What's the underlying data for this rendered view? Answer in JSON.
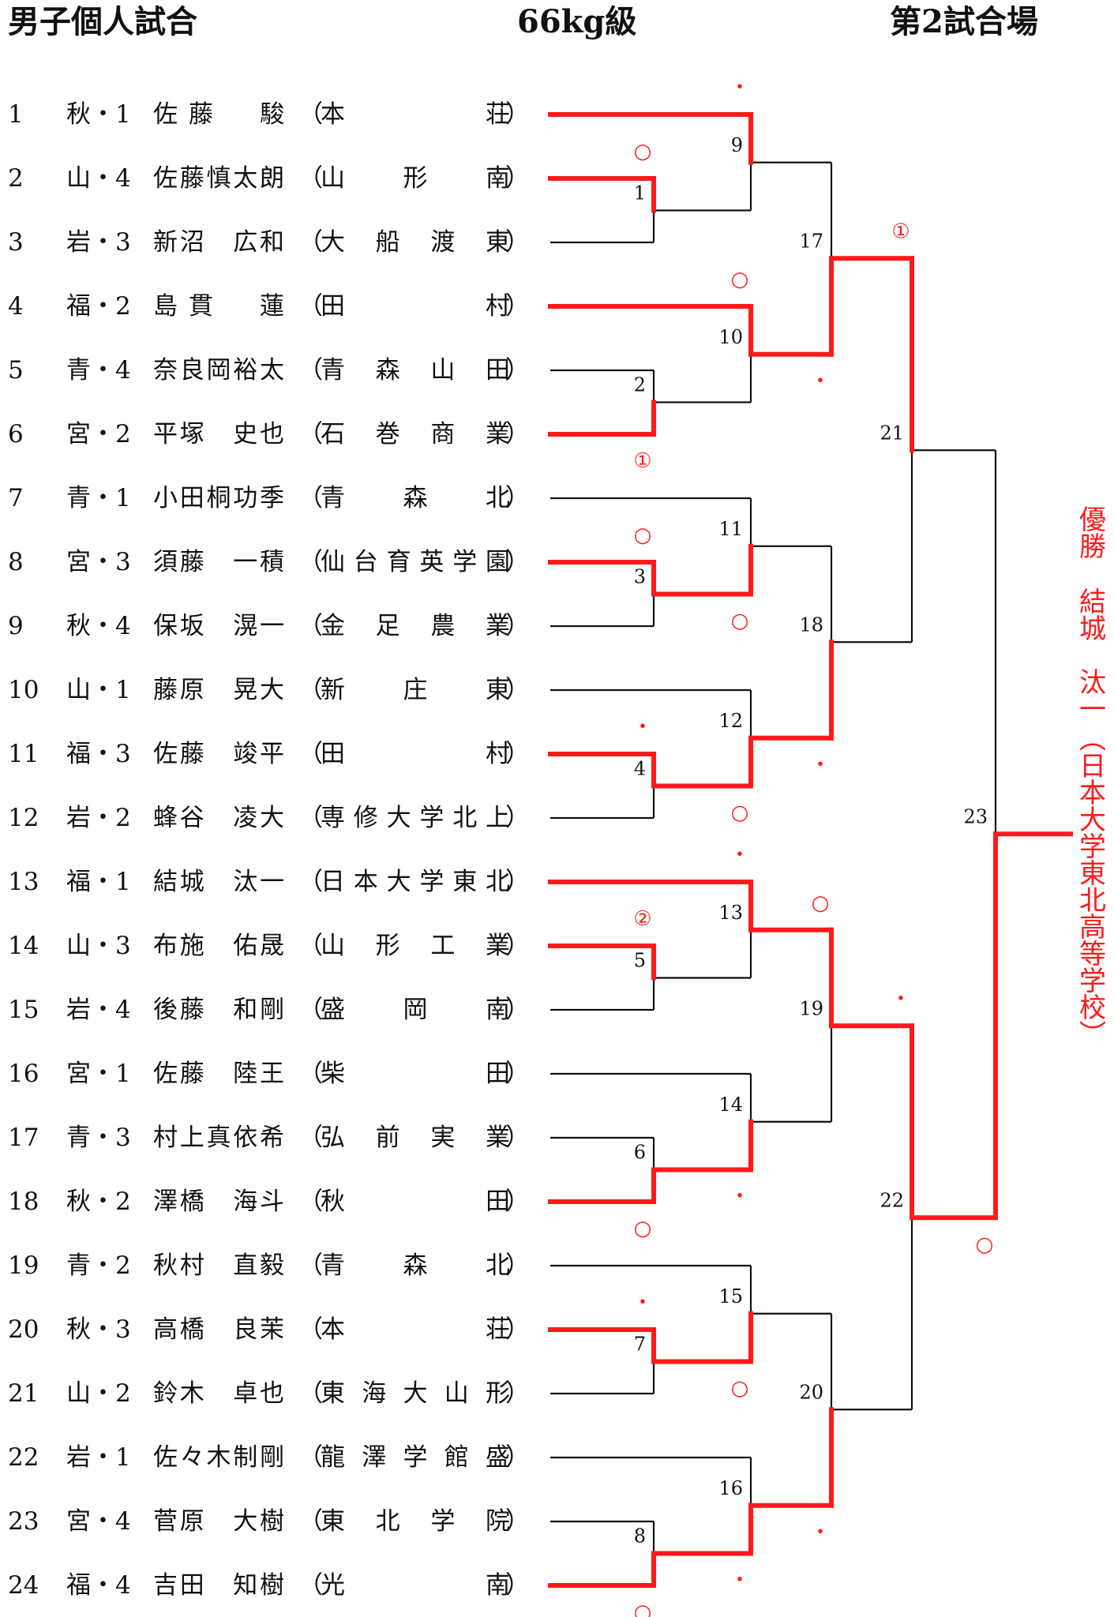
{
  "header": {
    "event": "男子個人試合",
    "weight_class": "66kg級",
    "court": "第2試合場"
  },
  "colors": {
    "winner_line": "#ff1a1a",
    "line": "#111111",
    "text": "#111111"
  },
  "entries": [
    {
      "seed": "1",
      "prefecture": "秋・1",
      "name": "佐藤　駿",
      "school": "本荘"
    },
    {
      "seed": "2",
      "prefecture": "山・4",
      "name": "佐藤慎太朗",
      "school": "山形南"
    },
    {
      "seed": "3",
      "prefecture": "岩・3",
      "name": "新沼　広和",
      "school": "大船渡東"
    },
    {
      "seed": "4",
      "prefecture": "福・2",
      "name": "島貫　蓮",
      "school": "田村"
    },
    {
      "seed": "5",
      "prefecture": "青・4",
      "name": "奈良岡裕太",
      "school": "青森山田"
    },
    {
      "seed": "6",
      "prefecture": "宮・2",
      "name": "平塚　史也",
      "school": "石巻商業"
    },
    {
      "seed": "7",
      "prefecture": "青・1",
      "name": "小田桐功季",
      "school": "青森北"
    },
    {
      "seed": "8",
      "prefecture": "宮・3",
      "name": "須藤　一積",
      "school": "仙台育英学園"
    },
    {
      "seed": "9",
      "prefecture": "秋・4",
      "name": "保坂　滉一",
      "school": "金足農業"
    },
    {
      "seed": "10",
      "prefecture": "山・1",
      "name": "藤原　晃大",
      "school": "新庄東"
    },
    {
      "seed": "11",
      "prefecture": "福・3",
      "name": "佐藤　竣平",
      "school": "田村"
    },
    {
      "seed": "12",
      "prefecture": "岩・2",
      "name": "蜂谷　凌大",
      "school": "専修大学北上"
    },
    {
      "seed": "13",
      "prefecture": "福・1",
      "name": "結城　汰一",
      "school": "日本大学東北"
    },
    {
      "seed": "14",
      "prefecture": "山・3",
      "name": "布施　佑晟",
      "school": "山形工業"
    },
    {
      "seed": "15",
      "prefecture": "岩・4",
      "name": "後藤　和剛",
      "school": "盛岡南"
    },
    {
      "seed": "16",
      "prefecture": "宮・1",
      "name": "佐藤　陸王",
      "school": "柴田"
    },
    {
      "seed": "17",
      "prefecture": "青・3",
      "name": "村上真依希",
      "school": "弘前実業"
    },
    {
      "seed": "18",
      "prefecture": "秋・2",
      "name": "澤橋　海斗",
      "school": "秋田"
    },
    {
      "seed": "19",
      "prefecture": "青・2",
      "name": "秋村　直毅",
      "school": "青森北"
    },
    {
      "seed": "20",
      "prefecture": "秋・3",
      "name": "高橋　良茉",
      "school": "本荘"
    },
    {
      "seed": "21",
      "prefecture": "山・2",
      "name": "鈴木　卓也",
      "school": "東海大山形"
    },
    {
      "seed": "22",
      "prefecture": "岩・1",
      "name": "佐々木制剛",
      "school": "龍澤学館盛"
    },
    {
      "seed": "23",
      "prefecture": "宮・4",
      "name": "菅原　大樹",
      "school": "東北学院"
    },
    {
      "seed": "24",
      "prefecture": "福・4",
      "name": "吉田　知樹",
      "school": "光南"
    }
  ],
  "matches": [
    {
      "no": "1",
      "winner": "upper",
      "mark": "○",
      "mark_pos": "above"
    },
    {
      "no": "2",
      "winner": "lower",
      "mark": "①",
      "mark_pos": "below"
    },
    {
      "no": "3",
      "winner": "upper",
      "mark": "○",
      "mark_pos": "above"
    },
    {
      "no": "4",
      "winner": "upper",
      "mark": "・",
      "mark_pos": "above"
    },
    {
      "no": "5",
      "winner": "upper",
      "mark": "②",
      "mark_pos": "above"
    },
    {
      "no": "6",
      "winner": "lower",
      "mark": "○",
      "mark_pos": "below"
    },
    {
      "no": "7",
      "winner": "upper",
      "mark": "・",
      "mark_pos": "above"
    },
    {
      "no": "8",
      "winner": "lower",
      "mark": "○",
      "mark_pos": "below"
    },
    {
      "no": "9",
      "winner": "upper",
      "mark": "・",
      "mark_pos": "above"
    },
    {
      "no": "10",
      "winner": "upper",
      "mark": "○",
      "mark_pos": "above"
    },
    {
      "no": "11",
      "winner": "lower",
      "mark": "○",
      "mark_pos": "below"
    },
    {
      "no": "12",
      "winner": "lower",
      "mark": "○",
      "mark_pos": "below"
    },
    {
      "no": "13",
      "winner": "upper",
      "mark": "・",
      "mark_pos": "above"
    },
    {
      "no": "14",
      "winner": "lower",
      "mark": "・",
      "mark_pos": "below"
    },
    {
      "no": "15",
      "winner": "lower",
      "mark": "○",
      "mark_pos": "below"
    },
    {
      "no": "16",
      "winner": "lower",
      "mark": "・",
      "mark_pos": "below"
    },
    {
      "no": "17",
      "winner": "lower",
      "mark": "・",
      "mark_pos": "below"
    },
    {
      "no": "18",
      "winner": "lower",
      "mark": "・",
      "mark_pos": "below"
    },
    {
      "no": "19",
      "winner": "upper",
      "mark": "○",
      "mark_pos": "above"
    },
    {
      "no": "20",
      "winner": "lower",
      "mark": "・",
      "mark_pos": "below"
    },
    {
      "no": "21",
      "winner": "upper",
      "mark": "①",
      "mark_pos": "above"
    },
    {
      "no": "22",
      "winner": "upper",
      "mark": "・",
      "mark_pos": "above"
    },
    {
      "no": "23",
      "winner": "lower",
      "mark": "○",
      "mark_pos": "below"
    }
  ],
  "champion": {
    "label": "優勝",
    "name": "結城　汰一",
    "school": "日本大学東北高等学校"
  }
}
